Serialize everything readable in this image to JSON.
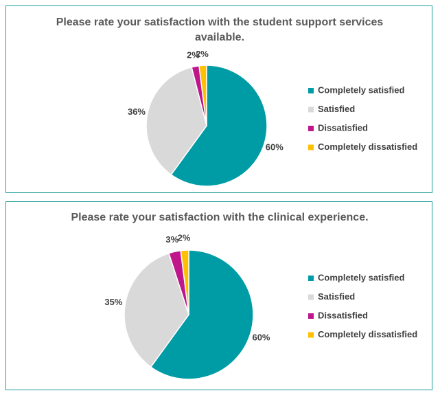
{
  "chart_data": [
    {
      "type": "pie",
      "title": "Please rate your satisfaction with the student support services available.",
      "categories": [
        "Completely satisfied",
        "Satisfied",
        "Dissatisfied",
        "Completely dissatisfied"
      ],
      "values": [
        60,
        36,
        2,
        2
      ],
      "value_labels": [
        "60%",
        "36%",
        "2%",
        "2%"
      ],
      "colors": [
        "#009ca6",
        "#d9d9d9",
        "#c0168c",
        "#ffc000"
      ]
    },
    {
      "type": "pie",
      "title": "Please rate your satisfaction with the clinical experience.",
      "categories": [
        "Completely satisfied",
        "Satisfied",
        "Dissatisfied",
        "Completely dissatisfied"
      ],
      "values": [
        60,
        35,
        3,
        2
      ],
      "value_labels": [
        "60%",
        "35%",
        "3%",
        "2%"
      ],
      "colors": [
        "#009ca6",
        "#d9d9d9",
        "#c0168c",
        "#ffc000"
      ]
    }
  ]
}
